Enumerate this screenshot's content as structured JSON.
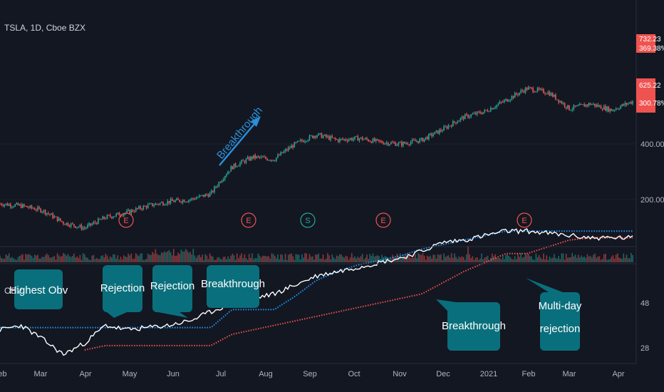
{
  "header": {
    "symbol": "TSLA, 1D, Cboe BZX"
  },
  "indicator": {
    "name": "OBV"
  },
  "colors": {
    "bg": "#131722",
    "up": "#26a69a",
    "down": "#ef5350",
    "obv": "#ffffff",
    "high": "#2196f3",
    "low": "#ef5350",
    "box": "#0a6f7c",
    "arrow": "#2a8fd8"
  },
  "price_labels": [
    {
      "text": "732.23"
    },
    {
      "text": "369.38%"
    },
    {
      "text": "625.22"
    },
    {
      "text": "300.78%"
    }
  ],
  "annotations": {
    "price": [
      {
        "text": "Breakthrough"
      }
    ],
    "obv": [
      {
        "text": "Highest Obv"
      },
      {
        "text": "Rejection"
      },
      {
        "text": "Rejection"
      },
      {
        "text": "Breakthrough"
      },
      {
        "text": "Breakthrough"
      },
      {
        "text": "Multi-day"
      },
      {
        "text": "rejection"
      }
    ]
  },
  "events": [
    {
      "label": "E"
    },
    {
      "label": "E"
    },
    {
      "label": "S"
    },
    {
      "label": "E"
    },
    {
      "label": "E"
    }
  ],
  "chart_data": [
    {
      "type": "candlestick",
      "series": [
        {
          "values": [
            190,
            185,
            175,
            150,
            140,
            160,
            170,
            185,
            195,
            200,
            215,
            300,
            340,
            330,
            400,
            450,
            420,
            430,
            410,
            400,
            420,
            480,
            560,
            600,
            690,
            800,
            760,
            620,
            660,
            610,
            680
          ]
        }
      ],
      "x": [
        "Feb",
        "",
        "Mar",
        "",
        "Apr",
        "",
        "May",
        "",
        "Jun",
        "",
        "Jul",
        "",
        "Aug",
        "",
        "Sep",
        "",
        "Oct",
        "",
        "Nov",
        "",
        "Dec",
        "",
        "2021",
        "",
        "Feb",
        "",
        "Mar",
        "",
        "Apr",
        "",
        ""
      ],
      "y_ticks": [
        "200.00",
        "400.00"
      ],
      "scale": "log"
    },
    {
      "type": "line",
      "series": [
        {
          "name": "OBV",
          "values": [
            36,
            38,
            32,
            25,
            30,
            38,
            36,
            37,
            38,
            40,
            44,
            48,
            50,
            52,
            56,
            60,
            62,
            64,
            66,
            68,
            71,
            75,
            76,
            78,
            80,
            80,
            79,
            78,
            77,
            77,
            77
          ]
        },
        {
          "values": [
            37,
            37,
            37,
            37,
            37,
            37,
            37,
            37,
            37,
            37,
            37,
            45,
            45,
            45,
            51,
            58,
            62,
            65,
            67,
            69,
            72,
            74,
            76,
            78,
            80,
            80,
            80,
            80,
            80,
            80,
            80
          ]
        },
        {
          "values": [
            null,
            null,
            null,
            null,
            27,
            29,
            29,
            29,
            29,
            29,
            29,
            34,
            36,
            38,
            40,
            42,
            44,
            46,
            48,
            50,
            52,
            57,
            62,
            66,
            70,
            70,
            73,
            76,
            77,
            77,
            77
          ]
        }
      ],
      "x_ticks": [
        "Feb",
        "Mar",
        "Apr",
        "May",
        "Jun",
        "Jul",
        "Aug",
        "Sep",
        "Oct",
        "Nov",
        "Dec",
        "2021",
        "Feb",
        "Mar",
        "Apr"
      ],
      "y_ticks": [
        "28",
        "48"
      ]
    }
  ]
}
